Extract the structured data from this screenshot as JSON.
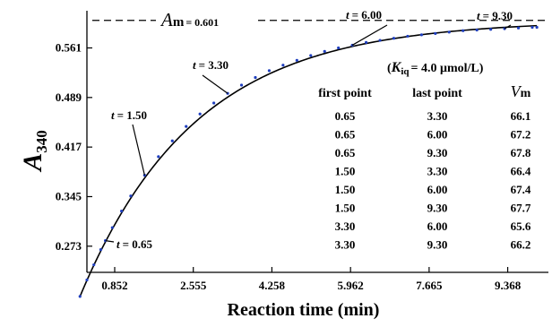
{
  "chart_data": {
    "type": "line",
    "xlabel": "Reaction time (min)",
    "ylabel": {
      "main": "A",
      "sub": "340"
    },
    "xlim": [
      0.25,
      10.25
    ],
    "ylim": [
      0.235,
      0.615
    ],
    "xticks": [
      0.852,
      2.555,
      4.258,
      5.962,
      7.665,
      9.368
    ],
    "xtick_labels": [
      "0.852",
      "2.555",
      "4.258",
      "5.962",
      "7.665",
      "9.368"
    ],
    "yticks": [
      0.273,
      0.345,
      0.417,
      0.489,
      0.561
    ],
    "ytick_labels": [
      "0.273",
      "0.345",
      "0.417",
      "0.489",
      "0.561"
    ],
    "grid": false,
    "asymptote": {
      "y": 0.601,
      "label_main": "A",
      "label_sub": "m",
      "label_value": "= 0.601"
    },
    "curve_params": {
      "A_inf": 0.601,
      "A0": 0.2,
      "t0": 0.1,
      "k": 0.4
    },
    "series": [
      {
        "x": [
          0.1,
          0.25,
          0.4,
          0.55,
          0.65,
          0.8,
          1.0,
          1.2,
          1.5,
          1.8,
          2.1,
          2.4,
          2.7,
          3.0,
          3.3,
          3.6,
          3.9,
          4.2,
          4.5,
          4.8,
          5.1,
          5.4,
          5.7,
          6.0,
          6.3,
          6.6,
          6.9,
          7.2,
          7.5,
          7.8,
          8.1,
          8.4,
          8.7,
          9.0,
          9.3,
          9.6,
          9.9,
          10.0
        ],
        "y": [
          0.2,
          0.224,
          0.246,
          0.268,
          0.281,
          0.3,
          0.324,
          0.346,
          0.376,
          0.403,
          0.426,
          0.447,
          0.465,
          0.481,
          0.495,
          0.507,
          0.518,
          0.528,
          0.536,
          0.543,
          0.55,
          0.556,
          0.561,
          0.565,
          0.569,
          0.572,
          0.575,
          0.578,
          0.58,
          0.582,
          0.584,
          0.586,
          0.587,
          0.588,
          0.589,
          0.59,
          0.591,
          0.591
        ]
      }
    ],
    "annotations": [
      {
        "label_var": "t",
        "label_value": "= 0.65",
        "x": 0.65,
        "y": 0.281
      },
      {
        "label_var": "t",
        "label_value": "= 1.50",
        "x": 1.5,
        "y": 0.376
      },
      {
        "label_var": "t",
        "label_value": "= 3.30",
        "x": 3.3,
        "y": 0.495
      },
      {
        "label_var": "t",
        "label_value": "= 6.00",
        "x": 6.0,
        "y": 0.565
      },
      {
        "label_var": "t",
        "label_value": "= 9.30",
        "x": 9.3,
        "y": 0.589
      }
    ],
    "table": {
      "kiq_label": {
        "open": "(",
        "main": "K",
        "sub": "iq",
        "value": "= 4.0 μmol/L)"
      },
      "headers": [
        "first point",
        "last point"
      ],
      "vm_header": {
        "main": "V",
        "sub": "m"
      },
      "rows": [
        [
          "0.65",
          "3.30",
          "66.1"
        ],
        [
          "0.65",
          "6.00",
          "67.2"
        ],
        [
          "0.65",
          "9.30",
          "67.8"
        ],
        [
          "1.50",
          "3.30",
          "66.4"
        ],
        [
          "1.50",
          "6.00",
          "67.4"
        ],
        [
          "1.50",
          "9.30",
          "67.7"
        ],
        [
          "3.30",
          "6.00",
          "65.6"
        ],
        [
          "3.30",
          "9.30",
          "66.2"
        ]
      ]
    }
  }
}
